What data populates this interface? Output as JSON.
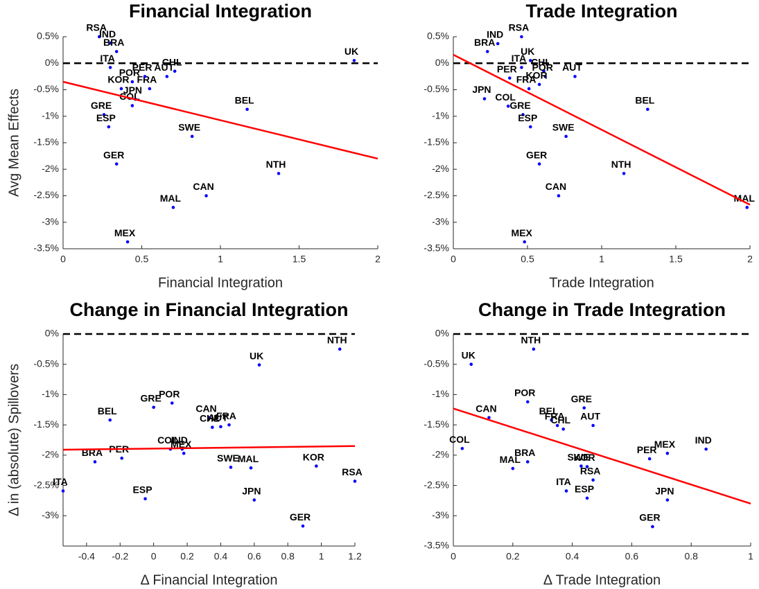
{
  "chart_data": [
    {
      "type": "scatter",
      "title": "Financial Integration",
      "xlabel": "Financial Integration",
      "ylabel": "Avg Mean Effects",
      "xlim": [
        0,
        2
      ],
      "ylim": [
        -3.5,
        0.5
      ],
      "xticks": [
        0,
        0.5,
        1,
        1.5,
        2
      ],
      "yticks": [
        {
          "value": 0.5,
          "label": "0.5%"
        },
        {
          "value": 0,
          "label": "0%"
        },
        {
          "value": -0.5,
          "label": "-0.5%"
        },
        {
          "value": -1,
          "label": "-1%"
        },
        {
          "value": -1.5,
          "label": "-1.5%"
        },
        {
          "value": -2,
          "label": "-2%"
        },
        {
          "value": -2.5,
          "label": "-2.5%"
        },
        {
          "value": -3,
          "label": "-3%"
        },
        {
          "value": -3.5,
          "label": "-3.5%"
        }
      ],
      "series": [
        {
          "color": "#0000ff",
          "labels": [
            "RSA",
            "IND",
            "BRA",
            "ITA",
            "UK",
            "AUT",
            "CHL",
            "POR",
            "FRA",
            "PER",
            "KOR",
            "JPN",
            "COL",
            "GRE",
            "ESP",
            "BEL",
            "SWE",
            "GER",
            "NTH",
            "CAN",
            "MAL",
            "MEX"
          ],
          "x": [
            0.23,
            0.3,
            0.34,
            0.3,
            1.85,
            0.66,
            0.71,
            0.44,
            0.55,
            0.52,
            0.37,
            0.46,
            0.44,
            0.26,
            0.29,
            1.17,
            0.82,
            0.34,
            1.37,
            0.91,
            0.7,
            0.41
          ],
          "values": [
            0.5,
            0.38,
            0.22,
            -0.08,
            0.05,
            -0.25,
            -0.15,
            -0.35,
            -0.48,
            -0.25,
            -0.48,
            -0.68,
            -0.8,
            -0.97,
            -1.2,
            -0.87,
            -1.38,
            -1.9,
            -2.08,
            -2.5,
            -2.72,
            -3.37
          ]
        }
      ],
      "fit": {
        "color": "#ff0000",
        "x": [
          0,
          2
        ],
        "values": [
          -0.35,
          -1.8
        ]
      },
      "reference_line": {
        "value": 0,
        "style": "dashed"
      }
    },
    {
      "type": "scatter",
      "title": "Trade Integration",
      "xlabel": "Trade Integration",
      "xlim": [
        0,
        2
      ],
      "ylim": [
        -3.5,
        0.5
      ],
      "xticks": [
        0,
        0.5,
        1,
        1.5,
        2
      ],
      "yticks": [
        {
          "value": 0.5,
          "label": "0.5%"
        },
        {
          "value": 0,
          "label": "0%"
        },
        {
          "value": -0.5,
          "label": "-0.5%"
        },
        {
          "value": -1,
          "label": "-1%"
        },
        {
          "value": -1.5,
          "label": "-1.5%"
        },
        {
          "value": -2,
          "label": "-2%"
        },
        {
          "value": -2.5,
          "label": "-2.5%"
        },
        {
          "value": -3,
          "label": "-3%"
        },
        {
          "value": -3.5,
          "label": "-3.5%"
        }
      ],
      "series": [
        {
          "color": "#0000ff",
          "labels": [
            "RSA",
            "IND",
            "BRA",
            "ITA",
            "UK",
            "CHL",
            "POR",
            "PER",
            "AUT",
            "FRA",
            "KOR",
            "JPN",
            "COL",
            "GRE",
            "ESP",
            "BEL",
            "SWE",
            "GER",
            "NTH",
            "CAN",
            "MAL",
            "MEX"
          ],
          "x": [
            0.46,
            0.3,
            0.23,
            0.46,
            0.52,
            0.61,
            0.62,
            0.38,
            0.82,
            0.51,
            0.58,
            0.21,
            0.37,
            0.47,
            0.52,
            1.31,
            0.76,
            0.58,
            1.15,
            0.71,
            1.98,
            0.48
          ],
          "values": [
            0.5,
            0.37,
            0.22,
            -0.08,
            0.05,
            -0.15,
            -0.25,
            -0.28,
            -0.25,
            -0.48,
            -0.4,
            -0.67,
            -0.81,
            -0.97,
            -1.2,
            -0.87,
            -1.38,
            -1.9,
            -2.08,
            -2.5,
            -2.72,
            -3.37
          ]
        }
      ],
      "fit": {
        "color": "#ff0000",
        "x": [
          0,
          2
        ],
        "values": [
          0.16,
          -2.67
        ]
      },
      "reference_line": {
        "value": 0,
        "style": "dashed"
      }
    },
    {
      "type": "scatter",
      "title": "Change in Financial Integration",
      "xlabel": "Δ Financial Integration",
      "ylabel": "Δ in (absolute) Spillovers",
      "xlim": [
        -0.54,
        1.2
      ],
      "ylim": [
        -3.5,
        0
      ],
      "xticks": [
        -0.4,
        -0.2,
        0,
        0.2,
        0.4,
        0.6,
        0.8,
        1,
        1.2
      ],
      "yticks": [
        {
          "value": 0,
          "label": "0%"
        },
        {
          "value": -0.5,
          "label": "-0.5%"
        },
        {
          "value": -1,
          "label": "-1%"
        },
        {
          "value": -1.5,
          "label": "-1.5%"
        },
        {
          "value": -2,
          "label": "-2%"
        },
        {
          "value": -2.5,
          "label": "-2.5%"
        },
        {
          "value": -3,
          "label": "-3%"
        }
      ],
      "series": [
        {
          "color": "#0000ff",
          "labels": [
            "NTH",
            "UK",
            "POR",
            "GRE",
            "BEL",
            "CAN",
            "CHL",
            "AUT",
            "FRA",
            "COL",
            "IND",
            "MEX",
            "BRA",
            "PER",
            "SWE",
            "MAL",
            "KOR",
            "RSA",
            "ITA",
            "ESP",
            "JPN",
            "GER"
          ],
          "x": [
            1.11,
            0.63,
            0.11,
            0.0,
            -0.26,
            0.33,
            0.35,
            0.4,
            0.45,
            0.1,
            0.17,
            0.18,
            -0.35,
            -0.19,
            0.46,
            0.58,
            0.97,
            1.2,
            -0.54,
            -0.05,
            0.6,
            0.89
          ],
          "values": [
            -0.25,
            -0.51,
            -1.14,
            -1.21,
            -1.42,
            -1.38,
            -1.54,
            -1.53,
            -1.5,
            -1.9,
            -1.9,
            -1.97,
            -2.11,
            -2.05,
            -2.2,
            -2.21,
            -2.18,
            -2.43,
            -2.59,
            -2.72,
            -2.74,
            -3.17
          ]
        }
      ],
      "fit": {
        "color": "#ff0000",
        "x": [
          -0.54,
          1.2
        ],
        "values": [
          -1.91,
          -1.85
        ]
      },
      "reference_line": {
        "value": 0,
        "style": "dashed"
      }
    },
    {
      "type": "scatter",
      "title": "Change in Trade Integration",
      "xlabel": "Δ Trade Integration",
      "xlim": [
        0,
        1
      ],
      "ylim": [
        -3.5,
        0
      ],
      "xticks": [
        0,
        0.2,
        0.4,
        0.6,
        0.8,
        1
      ],
      "yticks": [
        {
          "value": 0,
          "label": "0%"
        },
        {
          "value": -0.5,
          "label": "-0.5%"
        },
        {
          "value": -1,
          "label": "-1%"
        },
        {
          "value": -1.5,
          "label": "-1.5%"
        },
        {
          "value": -2,
          "label": "-2%"
        },
        {
          "value": -2.5,
          "label": "-2.5%"
        },
        {
          "value": -3,
          "label": "-3%"
        },
        {
          "value": -3.5,
          "label": "-3.5%"
        }
      ],
      "series": [
        {
          "color": "#0000ff",
          "labels": [
            "UK",
            "NTH",
            "POR",
            "GRE",
            "CAN",
            "BEL",
            "FRA",
            "CHL",
            "AUT",
            "COL",
            "PER",
            "MEX",
            "IND",
            "MAL",
            "BRA",
            "SWE",
            "KOR",
            "RSA",
            "ITA",
            "ESP",
            "JPN",
            "GER"
          ],
          "x": [
            0.06,
            0.27,
            0.25,
            0.44,
            0.12,
            0.33,
            0.35,
            0.37,
            0.47,
            0.03,
            0.66,
            0.72,
            0.85,
            0.2,
            0.25,
            0.43,
            0.45,
            0.47,
            0.38,
            0.45,
            0.72,
            0.67
          ],
          "values": [
            -0.5,
            -0.25,
            -1.12,
            -1.22,
            -1.38,
            -1.42,
            -1.51,
            -1.57,
            -1.51,
            -1.89,
            -2.06,
            -1.97,
            -1.9,
            -2.22,
            -2.11,
            -2.18,
            -2.19,
            -2.41,
            -2.59,
            -2.71,
            -2.74,
            -3.18
          ]
        }
      ],
      "fit": {
        "color": "#ff0000",
        "x": [
          0,
          1
        ],
        "values": [
          -1.23,
          -2.8
        ]
      },
      "reference_line": {
        "value": 0,
        "style": "dashed"
      }
    }
  ]
}
